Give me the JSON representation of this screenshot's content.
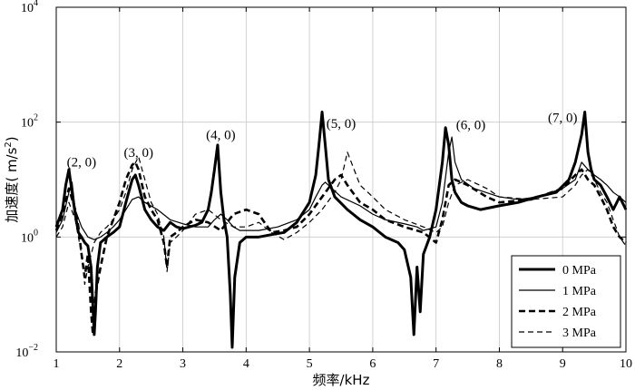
{
  "chart_data": {
    "type": "line",
    "xlabel": "频率/kHz",
    "ylabel_main": "加速度",
    "ylabel_unit": "( m/s",
    "ylabel_sup": "2",
    "ylabel_close": ")",
    "xlim": [
      1,
      10
    ],
    "ylim": [
      0.01,
      10000
    ],
    "yscale": "log",
    "x_ticks": [
      "1",
      "2",
      "3",
      "4",
      "5",
      "6",
      "7",
      "8",
      "9",
      "10"
    ],
    "y_ticks": [
      {
        "value": 0.01,
        "base": "10",
        "exp": "−2"
      },
      {
        "value": 1,
        "base": "10",
        "exp": "0"
      },
      {
        "value": 100,
        "base": "10",
        "exp": "2"
      },
      {
        "value": 10000,
        "base": "10",
        "exp": "4"
      }
    ],
    "grid": true,
    "legend_position": "bottom-right",
    "annotations": [
      {
        "text": "(2, 0)",
        "x": 1.4,
        "y": 17
      },
      {
        "text": "(3, 0)",
        "x": 2.3,
        "y": 25
      },
      {
        "text": "(4, 0)",
        "x": 3.6,
        "y": 50
      },
      {
        "text": "(5, 0)",
        "x": 5.5,
        "y": 80
      },
      {
        "text": "(6, 0)",
        "x": 7.55,
        "y": 75
      },
      {
        "text": "(7, 0)",
        "x": 9.0,
        "y": 100
      }
    ],
    "series": [
      {
        "name": "0 MPa",
        "style": "thick",
        "x": [
          1.0,
          1.1,
          1.15,
          1.2,
          1.25,
          1.3,
          1.35,
          1.4,
          1.45,
          1.5,
          1.55,
          1.6,
          1.62,
          1.65,
          1.7,
          1.8,
          1.9,
          2.0,
          2.1,
          2.2,
          2.25,
          2.3,
          2.4,
          2.5,
          2.6,
          2.7,
          2.8,
          2.9,
          3.0,
          3.1,
          3.2,
          3.3,
          3.4,
          3.45,
          3.5,
          3.55,
          3.6,
          3.65,
          3.7,
          3.75,
          3.78,
          3.82,
          3.9,
          4.0,
          4.2,
          4.4,
          4.6,
          4.8,
          5.0,
          5.1,
          5.15,
          5.2,
          5.25,
          5.3,
          5.4,
          5.6,
          5.8,
          6.0,
          6.2,
          6.4,
          6.5,
          6.6,
          6.65,
          6.7,
          6.75,
          6.8,
          6.9,
          7.0,
          7.1,
          7.15,
          7.2,
          7.25,
          7.3,
          7.4,
          7.5,
          7.7,
          8.0,
          8.3,
          8.6,
          8.9,
          9.1,
          9.2,
          9.3,
          9.35,
          9.4,
          9.45,
          9.5,
          9.6,
          9.7,
          9.8,
          9.9,
          10.0
        ],
        "y": [
          1.5,
          3,
          8,
          15,
          6,
          2.5,
          1.2,
          1.0,
          0.8,
          0.7,
          0.3,
          0.02,
          0.05,
          0.3,
          0.8,
          1.0,
          1.2,
          1.5,
          4,
          10,
          12,
          8,
          3,
          2,
          1.5,
          1.3,
          1.8,
          1.5,
          1.4,
          1.5,
          1.6,
          1.8,
          3,
          6,
          15,
          40,
          6,
          2,
          1.0,
          0.1,
          0.012,
          0.2,
          0.8,
          1.0,
          1.0,
          1.1,
          1.2,
          1.8,
          4,
          12,
          40,
          150,
          40,
          10,
          5,
          3,
          2,
          1.5,
          1.0,
          0.8,
          0.6,
          0.2,
          0.02,
          0.3,
          0.05,
          0.5,
          1.0,
          3,
          20,
          80,
          40,
          10,
          6,
          4,
          3.5,
          3,
          3.5,
          4,
          5,
          6,
          10,
          20,
          60,
          150,
          30,
          15,
          10,
          8,
          5,
          3,
          5,
          3
        ]
      },
      {
        "name": "1 MPa",
        "style": "thin",
        "x": [
          1.0,
          1.1,
          1.2,
          1.25,
          1.3,
          1.4,
          1.5,
          1.6,
          1.7,
          1.8,
          1.9,
          2.0,
          2.1,
          2.2,
          2.3,
          2.4,
          2.6,
          2.8,
          3.0,
          3.2,
          3.4,
          3.5,
          3.6,
          3.7,
          3.8,
          3.9,
          4.0,
          4.2,
          4.5,
          4.8,
          5.0,
          5.1,
          5.2,
          5.25,
          5.3,
          5.5,
          5.8,
          6.0,
          6.2,
          6.5,
          6.7,
          6.8,
          7.0,
          7.1,
          7.2,
          7.25,
          7.3,
          7.4,
          7.6,
          8.0,
          8.3,
          8.6,
          9.0,
          9.2,
          9.3,
          9.4,
          9.5,
          9.6,
          9.7,
          9.8,
          9.9,
          10.0
        ],
        "y": [
          1.2,
          2,
          6,
          9,
          3,
          1.5,
          1.0,
          0.9,
          1.0,
          1.2,
          1.5,
          2,
          3,
          4.5,
          5,
          4,
          3,
          2,
          1.7,
          1.5,
          1.5,
          2,
          2.5,
          2,
          1.5,
          1.3,
          1.3,
          1.3,
          1.5,
          2,
          3,
          5,
          8,
          9,
          8,
          5,
          3.5,
          2.5,
          2,
          1.7,
          1.5,
          1.3,
          1.5,
          4,
          30,
          55,
          20,
          10,
          7,
          5,
          4.5,
          5,
          7,
          10,
          20,
          15,
          12,
          10,
          8,
          6,
          5,
          4
        ]
      },
      {
        "name": "2 MPa",
        "style": "dash-thick",
        "x": [
          1.0,
          1.1,
          1.2,
          1.3,
          1.35,
          1.4,
          1.45,
          1.5,
          1.55,
          1.58,
          1.62,
          1.7,
          1.8,
          1.9,
          2.0,
          2.1,
          2.2,
          2.25,
          2.3,
          2.4,
          2.5,
          2.6,
          2.7,
          2.75,
          2.8,
          2.9,
          3.0,
          3.2,
          3.4,
          3.6,
          3.8,
          4.0,
          4.2,
          4.4,
          4.6,
          4.8,
          5.0,
          5.2,
          5.4,
          5.5,
          5.6,
          5.8,
          6.0,
          6.2,
          6.5,
          6.8,
          7.0,
          7.1,
          7.2,
          7.3,
          7.5,
          7.8,
          8.0,
          8.5,
          9.0,
          9.2,
          9.3,
          9.4,
          9.5,
          9.6,
          9.7,
          9.8,
          9.9,
          10.0
        ],
        "y": [
          1.3,
          2.5,
          7,
          3,
          1.5,
          0.5,
          0.2,
          0.5,
          0.05,
          0.02,
          0.1,
          0.3,
          1.0,
          2,
          4,
          10,
          18,
          20,
          15,
          5,
          3,
          2,
          0.8,
          0.3,
          1.0,
          1.2,
          1.5,
          2,
          1.8,
          1.3,
          2.5,
          3,
          2.5,
          1.2,
          1.3,
          1.5,
          2.5,
          5,
          10,
          12,
          8,
          4,
          3,
          2,
          1.5,
          1.2,
          0.8,
          2,
          8,
          10,
          8,
          5,
          4,
          4.5,
          7,
          12,
          15,
          10,
          8,
          5,
          3,
          1.5,
          1.0,
          0.8
        ]
      },
      {
        "name": "3 MPa",
        "style": "dash-thin",
        "x": [
          1.0,
          1.1,
          1.2,
          1.3,
          1.4,
          1.45,
          1.5,
          1.6,
          1.7,
          1.8,
          1.9,
          2.0,
          2.1,
          2.2,
          2.3,
          2.4,
          2.5,
          2.6,
          2.7,
          2.75,
          2.8,
          2.9,
          3.0,
          3.2,
          3.4,
          3.6,
          3.8,
          4.0,
          4.2,
          4.4,
          4.6,
          4.8,
          5.0,
          5.2,
          5.4,
          5.5,
          5.6,
          5.8,
          6.0,
          6.2,
          6.5,
          6.8,
          7.0,
          7.1,
          7.2,
          7.3,
          7.5,
          7.8,
          8.0,
          8.5,
          9.0,
          9.2,
          9.3,
          9.4,
          9.5,
          9.6,
          9.7,
          9.8,
          9.9,
          10.0
        ],
        "y": [
          1.0,
          1.5,
          4,
          2,
          0.5,
          0.15,
          0.3,
          0.8,
          1.2,
          1.5,
          2,
          3,
          6,
          15,
          25,
          10,
          4,
          2.5,
          1.0,
          0.25,
          0.8,
          1.0,
          1.3,
          2.5,
          3,
          2,
          1.5,
          1.5,
          1.8,
          1.2,
          0.9,
          1.2,
          1.8,
          3,
          6,
          10,
          30,
          8,
          5,
          3,
          2,
          1.5,
          1.2,
          1.5,
          4,
          8,
          10,
          7,
          5,
          4.5,
          5,
          8,
          12,
          15,
          10,
          6,
          4,
          2,
          1.0,
          0.7
        ]
      }
    ]
  }
}
